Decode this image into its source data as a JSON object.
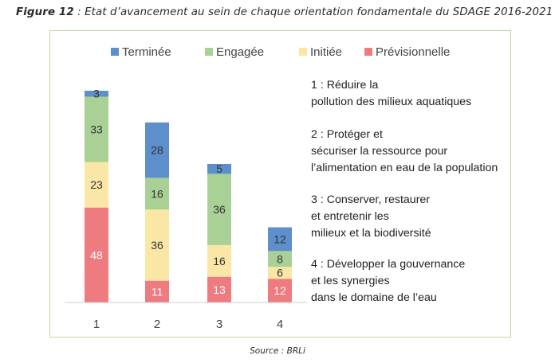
{
  "figure": {
    "label": "Figure 12",
    "caption": " : Etat d’avancement au sein de chaque orientation fondamentale du SDAGE 2016-2021"
  },
  "source": "Source : BRLi",
  "chart_data": {
    "type": "bar",
    "stacked": true,
    "categories": [
      "1",
      "2",
      "3",
      "4"
    ],
    "series": [
      {
        "name": "Prévisionnelle",
        "color": "#ee7b80",
        "values": [
          48,
          11,
          13,
          12
        ]
      },
      {
        "name": "Initiée",
        "color": "#fbe7a5",
        "values": [
          23,
          36,
          16,
          6
        ]
      },
      {
        "name": "Engagée",
        "color": "#a9d196",
        "values": [
          33,
          16,
          36,
          8
        ]
      },
      {
        "name": "Terminée",
        "color": "#5c8fcb",
        "values": [
          3,
          28,
          5,
          12
        ]
      }
    ],
    "legend_order": [
      "Terminée",
      "Engagée",
      "Initiée",
      "Prévisionnelle"
    ],
    "legend_position": "top",
    "ylim": [
      0,
      107
    ],
    "grid": false,
    "annotations": [
      "1 : Réduire la pollution des milieux aquatiques",
      "2 : Protéger et sécuriser la ressource pour l’alimentation en eau de la population",
      "3 : Conserver, restaurer et entretenir les milieux et la biodiversité",
      "4 : Développer la gouvernance et les synergies dans le domaine de l’eau"
    ]
  }
}
